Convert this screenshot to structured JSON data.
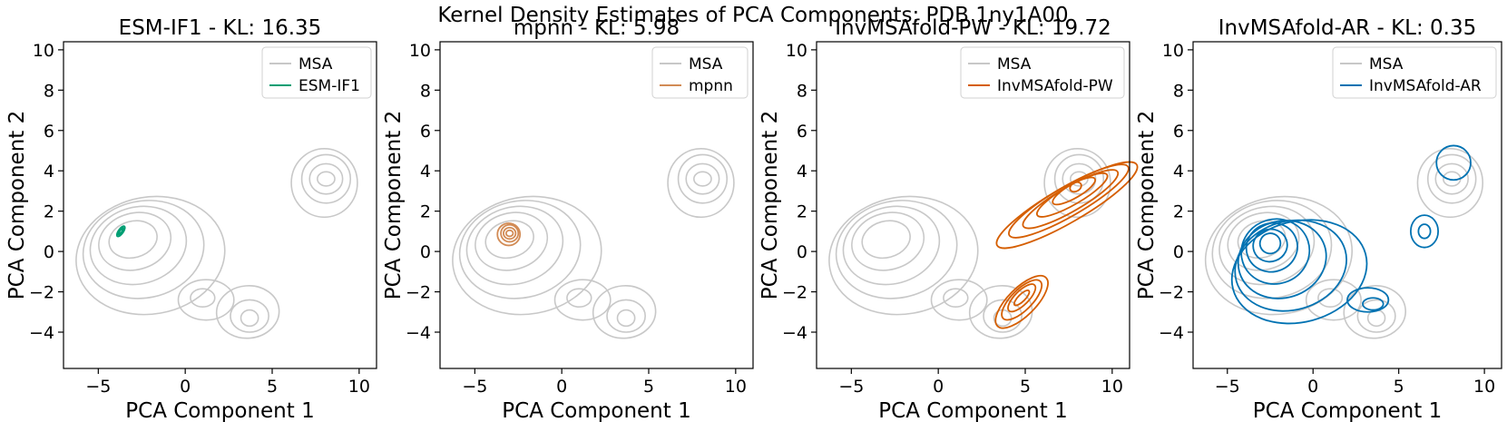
{
  "figure_title": "Kernel Density Estimates of PCA Components: PDB 1ny1A00",
  "colors": {
    "msa": "#c8c8c8",
    "esm_if1": "#009e73",
    "mpnn": "#d28b55",
    "invmsafold_pw": "#d55e00",
    "invmsafold_ar": "#0072b2"
  },
  "chart_data": [
    {
      "type": "contour",
      "title": "ESM-IF1 - KL: 16.35",
      "xlabel": "PCA Component 1",
      "ylabel": "PCA Component 2",
      "xlim": [
        -7,
        11
      ],
      "ylim": [
        -5.8,
        10.4
      ],
      "xticks": [
        -5,
        0,
        5,
        10
      ],
      "yticks": [
        -4,
        -2,
        0,
        2,
        4,
        6,
        8,
        10
      ],
      "legend": [
        {
          "label": "MSA",
          "color_key": "msa"
        },
        {
          "label": "ESM-IF1",
          "color_key": "esm_if1"
        }
      ],
      "series_color_key": "esm_if1",
      "series": [
        {
          "name": "MSA",
          "modes": [
            [
              -3,
              0.6
            ],
            [
              8.1,
              3.6
            ],
            [
              3.7,
              -3.3
            ],
            [
              1,
              -2.3
            ]
          ]
        },
        {
          "name": "ESM-IF1",
          "modes": [
            [
              -3.7,
              1.0
            ]
          ]
        }
      ]
    },
    {
      "type": "contour",
      "title": "mpnn - KL: 5.98",
      "xlabel": "PCA Component 1",
      "ylabel": "PCA Component 2",
      "xlim": [
        -7,
        11
      ],
      "ylim": [
        -5.8,
        10.4
      ],
      "xticks": [
        -5,
        0,
        5,
        10
      ],
      "yticks": [
        -4,
        -2,
        0,
        2,
        4,
        6,
        8,
        10
      ],
      "legend": [
        {
          "label": "MSA",
          "color_key": "msa"
        },
        {
          "label": "mpnn",
          "color_key": "mpnn"
        }
      ],
      "series_color_key": "mpnn",
      "series": [
        {
          "name": "MSA",
          "modes": [
            [
              -3,
              0.6
            ],
            [
              8.1,
              3.6
            ],
            [
              3.7,
              -3.3
            ],
            [
              1,
              -2.3
            ]
          ]
        },
        {
          "name": "mpnn",
          "modes": [
            [
              -3,
              0.9
            ]
          ]
        }
      ]
    },
    {
      "type": "contour",
      "title": "InvMSAfold-PW - KL: 19.72",
      "xlabel": "PCA Component 1",
      "ylabel": "PCA Component 2",
      "xlim": [
        -7,
        11
      ],
      "ylim": [
        -5.8,
        10.4
      ],
      "xticks": [
        -5,
        0,
        5,
        10
      ],
      "yticks": [
        -4,
        -2,
        0,
        2,
        4,
        6,
        8,
        10
      ],
      "legend": [
        {
          "label": "MSA",
          "color_key": "msa"
        },
        {
          "label": "InvMSAfold-PW",
          "color_key": "invmsafold_pw"
        }
      ],
      "series_color_key": "invmsafold_pw",
      "series": [
        {
          "name": "MSA",
          "modes": [
            [
              -3,
              0.6
            ],
            [
              8.1,
              3.6
            ],
            [
              3.7,
              -3.3
            ],
            [
              1,
              -2.3
            ]
          ]
        },
        {
          "name": "InvMSAfold-PW",
          "modes": [
            [
              7.9,
              3.0
            ],
            [
              4.8,
              -2.3
            ]
          ]
        }
      ]
    },
    {
      "type": "contour",
      "title": "InvMSAfold-AR - KL: 0.35",
      "xlabel": "PCA Component 1",
      "ylabel": "PCA Component 2",
      "xlim": [
        -7,
        11
      ],
      "ylim": [
        -5.8,
        10.4
      ],
      "xticks": [
        -5,
        0,
        5,
        10
      ],
      "yticks": [
        -4,
        -2,
        0,
        2,
        4,
        6,
        8,
        10
      ],
      "legend": [
        {
          "label": "MSA",
          "color_key": "msa"
        },
        {
          "label": "InvMSAfold-AR",
          "color_key": "invmsafold_ar"
        }
      ],
      "series_color_key": "invmsafold_ar",
      "series": [
        {
          "name": "MSA",
          "modes": [
            [
              -3,
              0.6
            ],
            [
              8.1,
              3.6
            ],
            [
              3.7,
              -3.3
            ],
            [
              1,
              -2.3
            ]
          ]
        },
        {
          "name": "InvMSAfold-AR",
          "modes": [
            [
              -2.5,
              0.4
            ],
            [
              3.5,
              -2.6
            ],
            [
              6.5,
              1.0
            ],
            [
              8.2,
              4.4
            ]
          ]
        }
      ]
    }
  ]
}
